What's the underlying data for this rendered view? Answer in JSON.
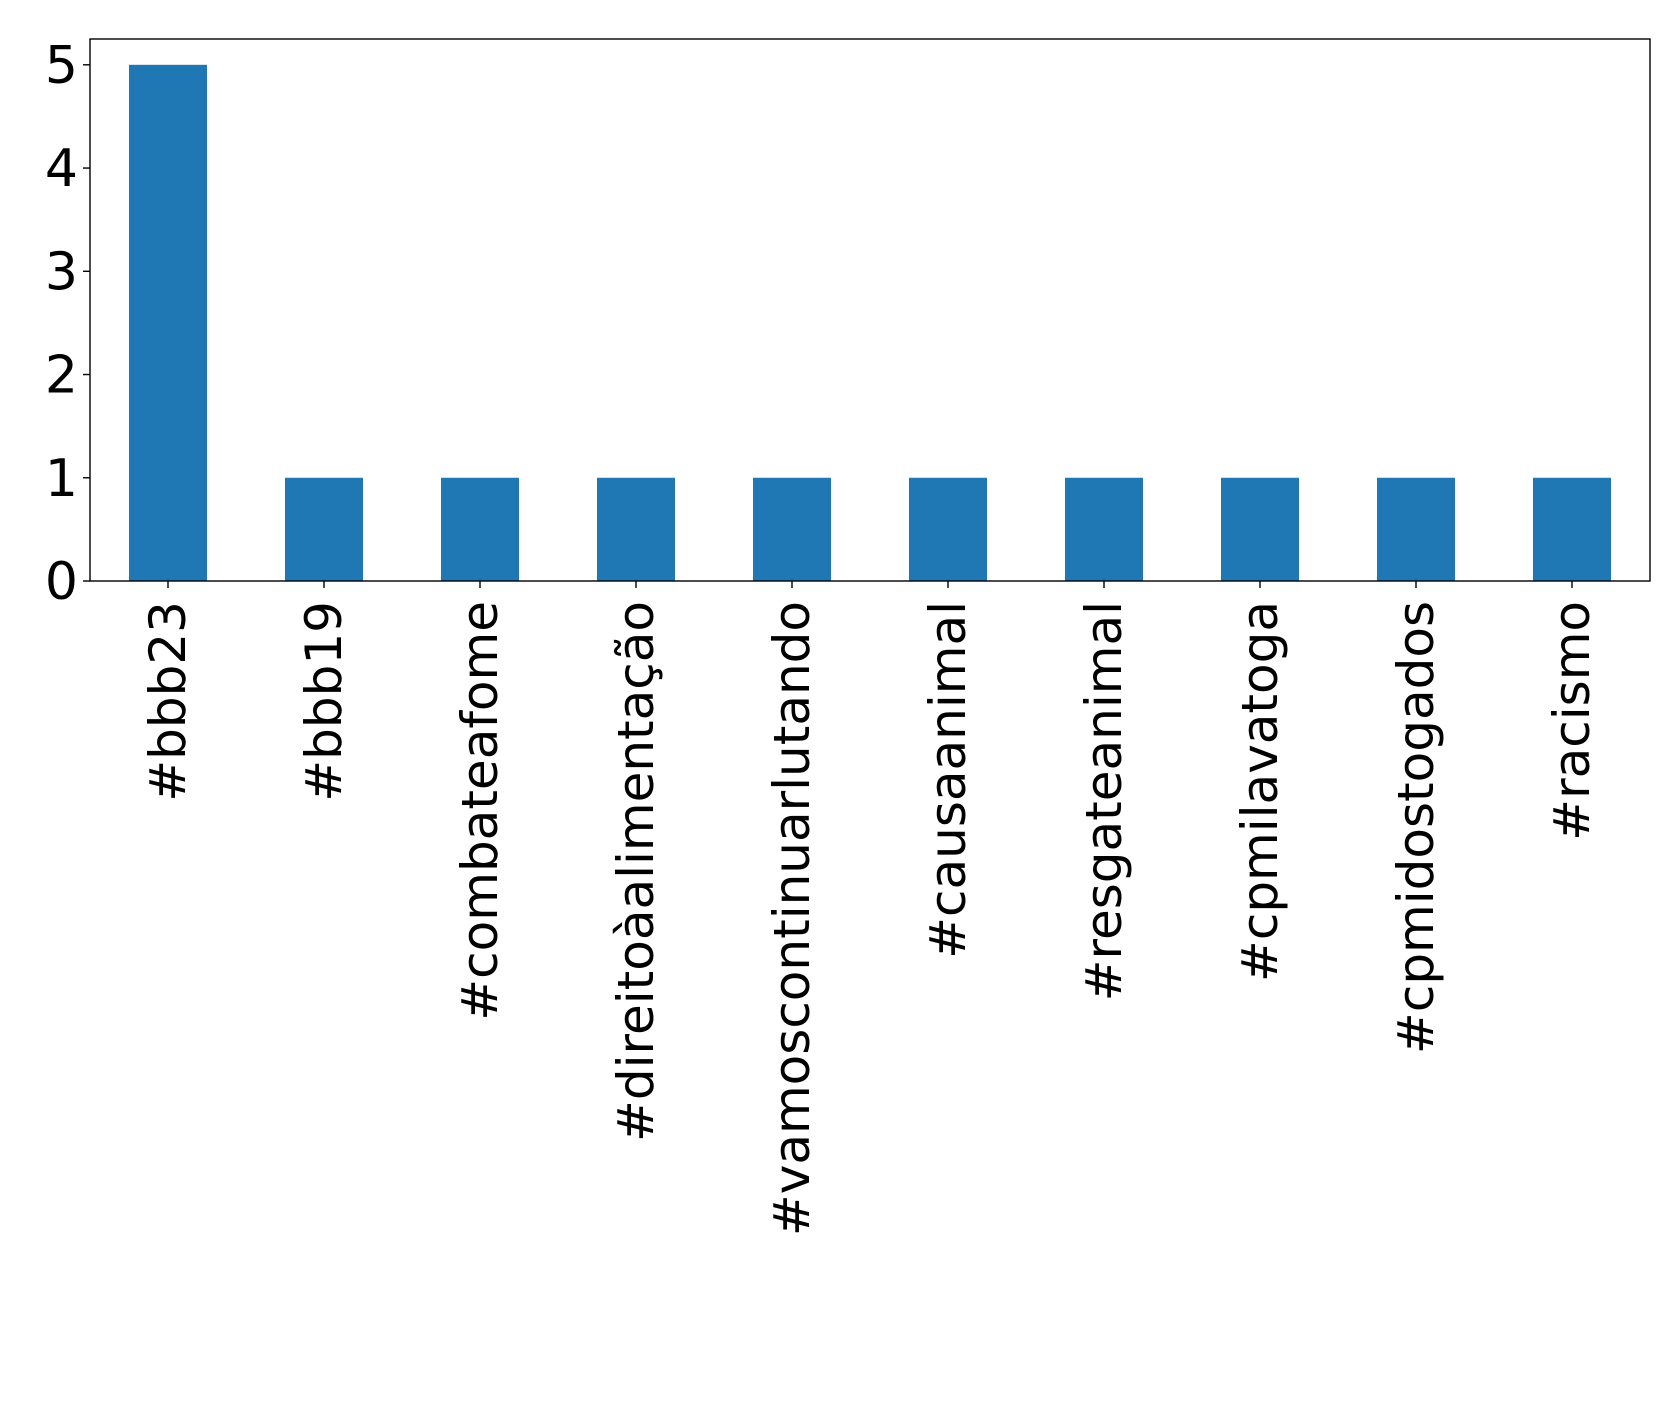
{
  "chart_data": {
    "type": "bar",
    "title": "",
    "xlabel": "",
    "ylabel": "",
    "categories": [
      "#bbb23",
      "#bbb19",
      "#combateafome",
      "#direitoàalimentação",
      "#vamoscontinuarlutando",
      "#causaanimal",
      "#resgateanimal",
      "#cpmilavatoga",
      "#cpmidostogados",
      "#racismo"
    ],
    "values": [
      5,
      1,
      1,
      1,
      1,
      1,
      1,
      1,
      1,
      1
    ],
    "ylim": [
      0,
      5.25
    ],
    "yticks": [
      "0",
      "1",
      "2",
      "3",
      "4",
      "5"
    ],
    "grid": false,
    "legend": "none",
    "bar_color": "#1f77b4"
  }
}
